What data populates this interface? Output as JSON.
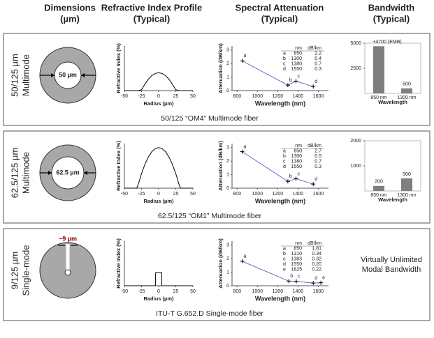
{
  "headers": [
    [
      "Dimensions",
      "(µm)"
    ],
    [
      "Refractive Index Profile",
      "(Typical)"
    ],
    [
      "Spectral Attenuation",
      "(Typical)"
    ],
    [
      "Bandwidth",
      "(Typical)"
    ]
  ],
  "rows": [
    {
      "label": [
        "50/125 µm",
        "Multimode"
      ],
      "core_label": "50 µm",
      "caption": "50/125 “OM4” Multimode fiber",
      "profile": {
        "ylabel": "Refractive Index (%)",
        "xlabel": "Radius (µm)",
        "xlim": [
          -50,
          50
        ],
        "ylim": [
          0,
          2.5
        ],
        "xticks": [
          -50,
          -25,
          0,
          25,
          50
        ],
        "x": [
          -50,
          -30,
          -25,
          -20,
          -15,
          -10,
          -5,
          0,
          5,
          10,
          15,
          20,
          25,
          30,
          50
        ],
        "values": [
          0,
          0,
          0.05,
          0.36,
          0.64,
          0.84,
          0.96,
          1,
          0.96,
          0.84,
          0.64,
          0.36,
          0.05,
          0,
          0
        ]
      },
      "attenuation": {
        "ylabel": "Attenuation (dB/km)",
        "xlabel": "Wavelength (nm)",
        "xlim": [
          750,
          1700
        ],
        "ylim": [
          0,
          3.3
        ],
        "xticks": [
          800,
          1000,
          1200,
          1400,
          1600
        ],
        "yticks": [
          0,
          1,
          2,
          3
        ],
        "table_header": [
          "nm",
          "dB/km"
        ],
        "letters": [
          "a",
          "b",
          "c",
          "d"
        ],
        "wavelengths": [
          850,
          1300,
          1380,
          1550
        ],
        "values": [
          2.2,
          0.4,
          0.7,
          0.3
        ]
      },
      "bandwidth": {
        "type": "bar",
        "xlabel": "Wavelength",
        "categories": [
          "850 nm",
          "1300 nm"
        ],
        "values": [
          4700,
          500
        ],
        "value_labels": [
          "+4700 (EMB)",
          "500"
        ],
        "ylim": [
          0,
          5000
        ],
        "yticks": [
          2500,
          5000
        ]
      }
    },
    {
      "label": [
        "62.5/125 µm",
        "Multimode"
      ],
      "core_label": "62.5 µm",
      "caption": "62.5/125 “OM1” Multimode fiber",
      "profile": {
        "ylabel": "Refractive Index (%)",
        "xlabel": "Radius (µm)",
        "xlim": [
          -50,
          50
        ],
        "ylim": [
          0,
          2.2
        ],
        "xticks": [
          -50,
          -25,
          0,
          25,
          50
        ],
        "x": [
          -50,
          -32,
          -30,
          -25,
          -20,
          -15,
          -10,
          -5,
          0,
          5,
          10,
          15,
          20,
          25,
          30,
          32,
          50
        ],
        "values": [
          0,
          0,
          0.16,
          0.72,
          1.18,
          1.54,
          1.8,
          1.95,
          2,
          1.95,
          1.8,
          1.54,
          1.18,
          0.72,
          0.16,
          0,
          0
        ]
      },
      "attenuation": {
        "ylabel": "Attenuation (dB/km)",
        "xlabel": "Wavelength (nm)",
        "xlim": [
          750,
          1700
        ],
        "ylim": [
          0,
          3.3
        ],
        "xticks": [
          800,
          1000,
          1200,
          1400,
          1600
        ],
        "yticks": [
          0,
          1,
          2,
          3
        ],
        "table_header": [
          "nm",
          "dB/km"
        ],
        "letters": [
          "a",
          "b",
          "c",
          "d"
        ],
        "wavelengths": [
          850,
          1300,
          1380,
          1550
        ],
        "values": [
          2.7,
          0.5,
          0.7,
          0.3
        ]
      },
      "bandwidth": {
        "type": "bar",
        "xlabel": "Wavelength",
        "categories": [
          "850 nm",
          "1300 nm"
        ],
        "values": [
          200,
          500
        ],
        "ylim": [
          0,
          2000
        ],
        "yticks": [
          1000,
          2000
        ]
      }
    },
    {
      "label": [
        "9/125 µm",
        "Single-mode"
      ],
      "core_label": "~9 µm",
      "caption": "ITU-T G.652.D Single-mode fiber",
      "profile": {
        "ylabel": "Refractive Index (%)",
        "xlabel": "Radius (µm)",
        "xlim": [
          -50,
          50
        ],
        "ylim": [
          0,
          1.2
        ],
        "xticks": [
          -50,
          -25,
          0,
          25,
          50
        ],
        "x": [
          -50,
          -4.5,
          -4.5,
          4.5,
          4.5,
          50
        ],
        "values": [
          0,
          0,
          0.35,
          0.35,
          0,
          0
        ]
      },
      "attenuation": {
        "ylabel": "Attenuation (dB/km)",
        "xlabel": "Wavelength (nm)",
        "xlim": [
          750,
          1700
        ],
        "ylim": [
          0,
          3.3
        ],
        "xticks": [
          800,
          1000,
          1200,
          1400,
          1600
        ],
        "yticks": [
          0,
          1,
          2,
          3
        ],
        "table_header": [
          "nm",
          "dB/km"
        ],
        "letters": [
          "a",
          "b",
          "c",
          "d",
          "e"
        ],
        "wavelengths": [
          850,
          1310,
          1383,
          1550,
          1625
        ],
        "values": [
          1.81,
          0.34,
          0.32,
          0.2,
          0.22
        ],
        "value_labels": [
          "1.81",
          "0.34",
          "0.32",
          "0.20",
          "0.22"
        ]
      },
      "bandwidth_note": [
        "Virtually Unlimited",
        "Modal Bandwidth"
      ]
    }
  ]
}
